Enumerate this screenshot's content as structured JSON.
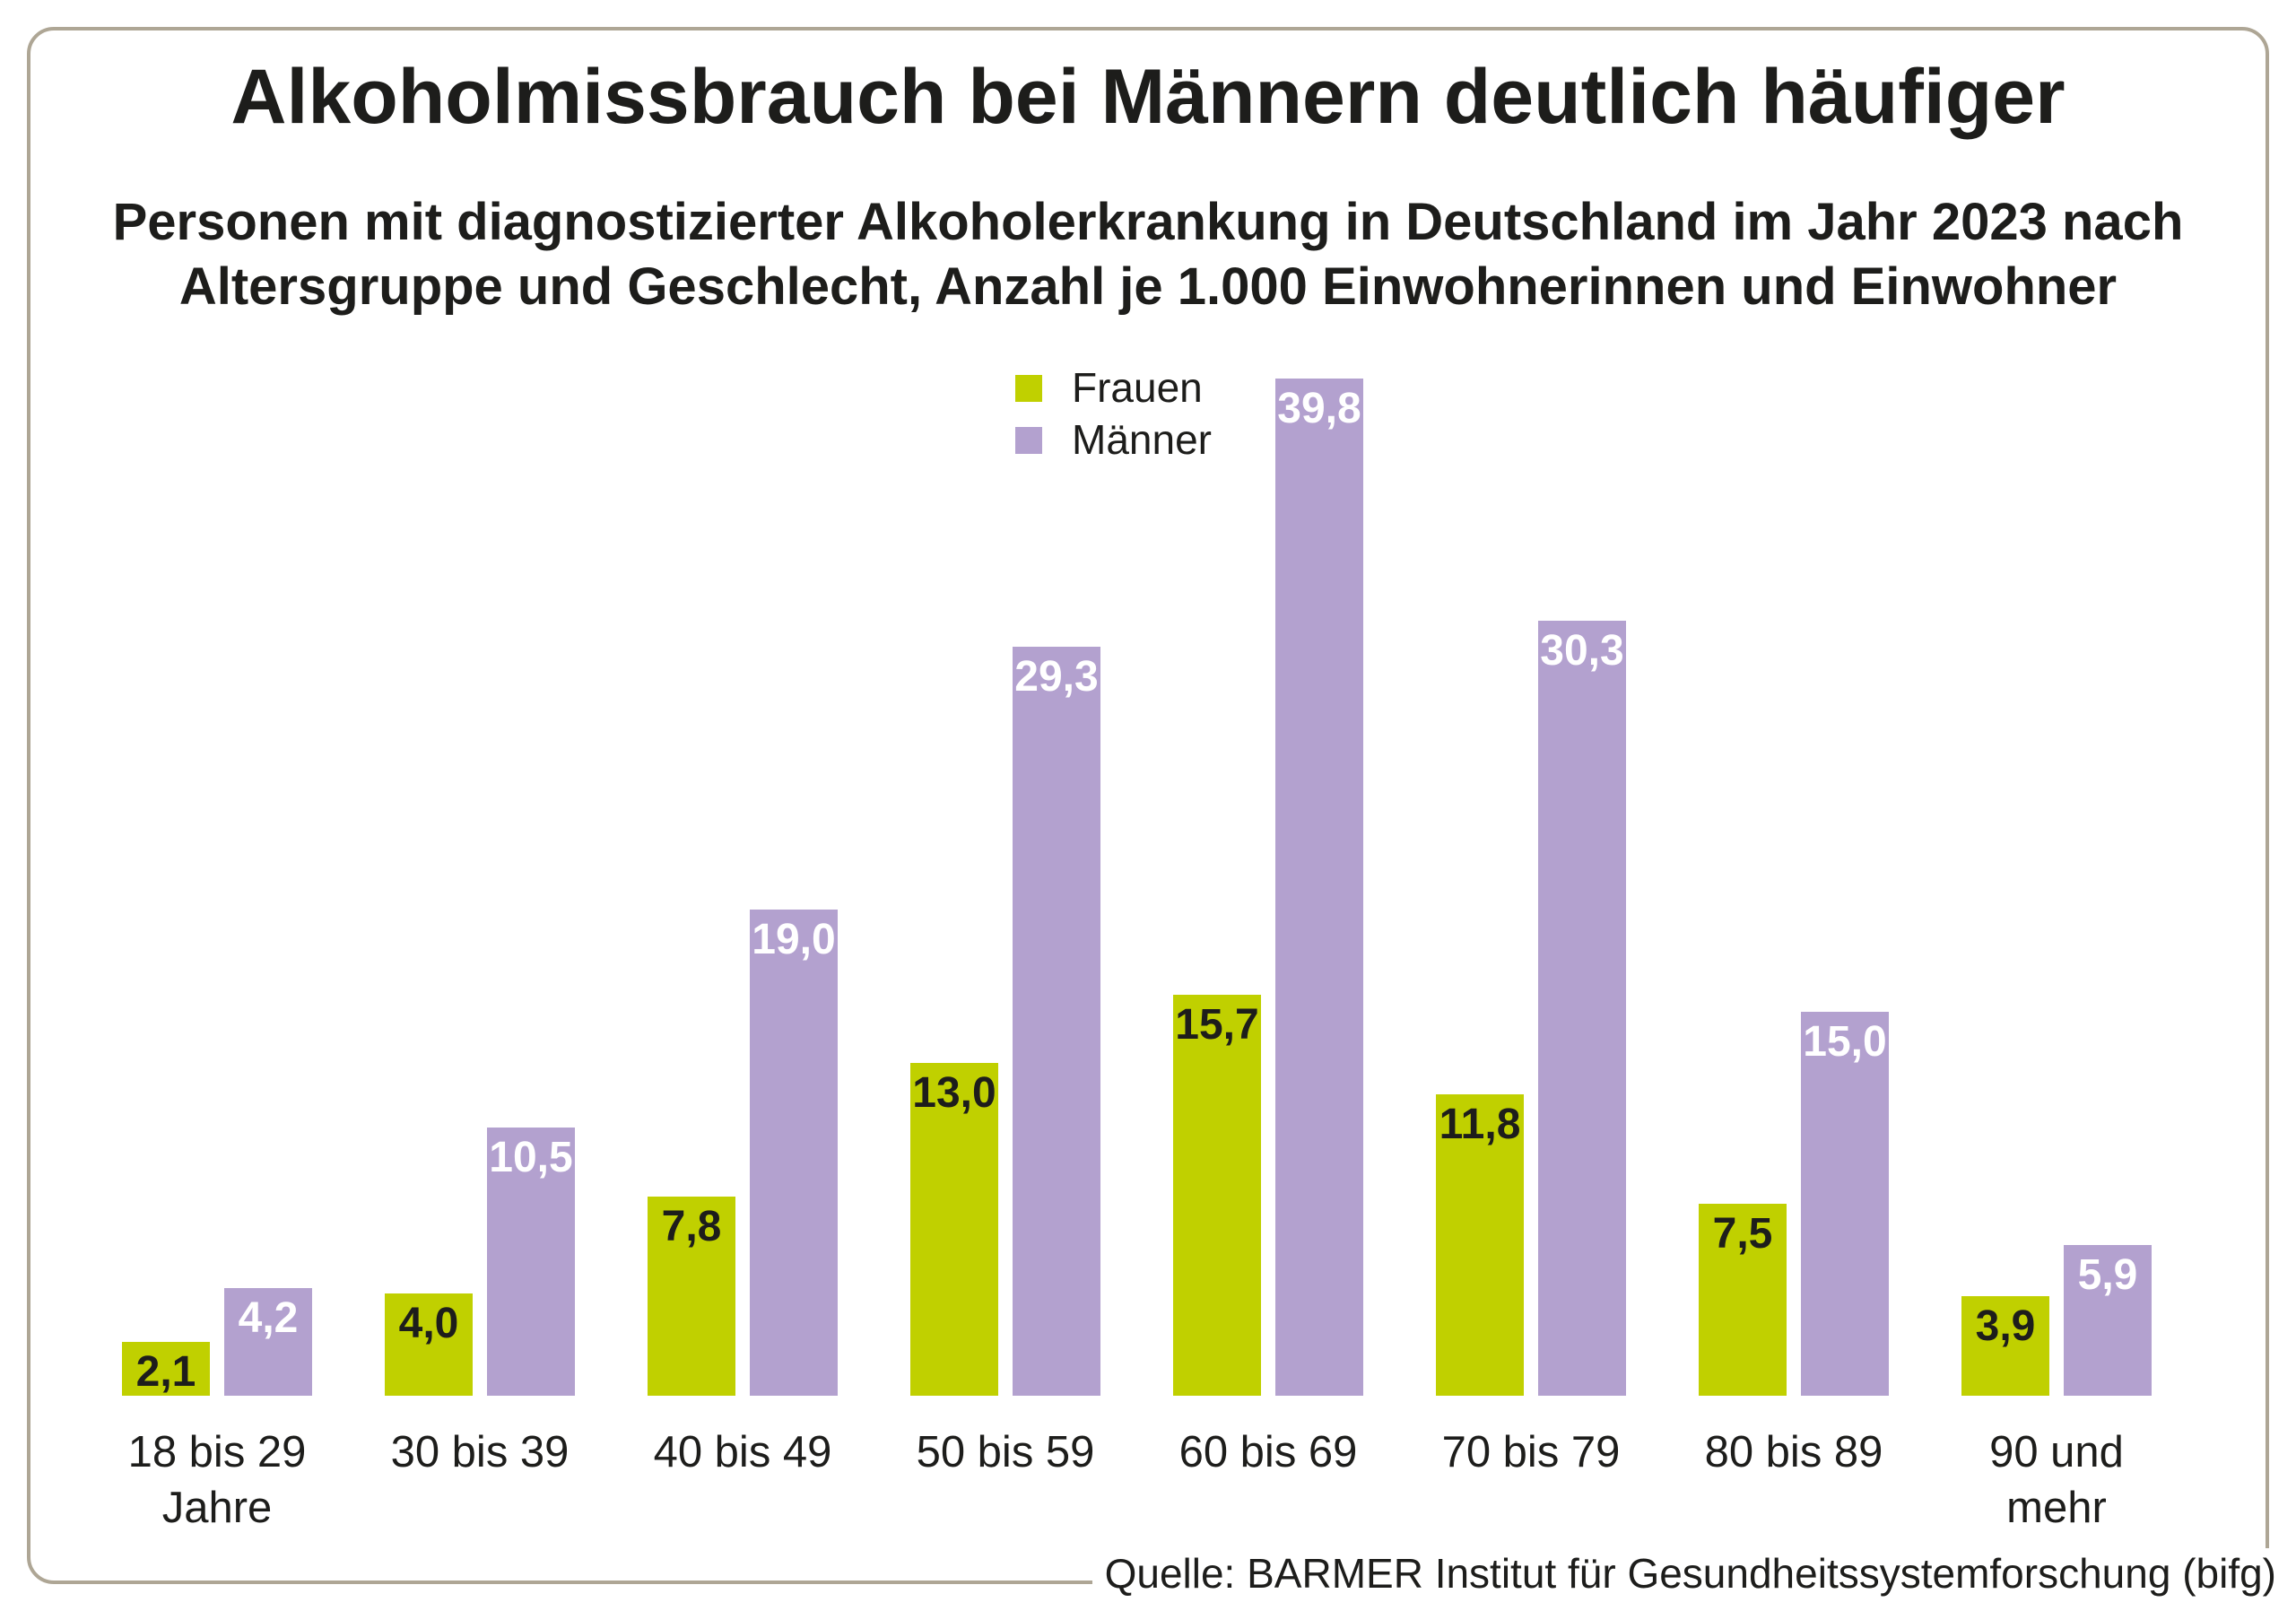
{
  "chart_data": {
    "type": "bar",
    "title": "Alkoholmissbrauch bei Männern deutlich häufiger",
    "subtitle_lines": [
      "Personen mit diagnostizierter Alkoholerkrankung in Deutschland im Jahr 2023 nach",
      "Altersgruppe und Geschlecht, Anzahl je 1.000 Einwohnerinnen und Einwohner"
    ],
    "categories": [
      "18 bis 29\nJahre",
      "30 bis 39",
      "40 bis 49",
      "50 bis 59",
      "60 bis 69",
      "70 bis 79",
      "80 bis 89",
      "90 und\nmehr"
    ],
    "series": [
      {
        "name": "Frauen",
        "color": "#c0d000",
        "value_label_color": "#1d1d1b",
        "values": [
          2.1,
          4.0,
          7.8,
          13.0,
          15.7,
          11.8,
          7.5,
          3.9
        ],
        "value_labels": [
          "2,1",
          "4,0",
          "7,8",
          "13,0",
          "15,7",
          "11,8",
          "7,5",
          "3,9"
        ]
      },
      {
        "name": "Männer",
        "color": "#b3a1cf",
        "value_label_color": "#ffffff",
        "values": [
          4.2,
          10.5,
          19.0,
          29.3,
          39.8,
          30.3,
          15.0,
          5.9
        ],
        "value_labels": [
          "4,2",
          "10,5",
          "19,0",
          "29,3",
          "39,8",
          "30,3",
          "15,0",
          "5,9"
        ]
      }
    ],
    "ylim": [
      0,
      40
    ],
    "grid": false,
    "axis_lines": false,
    "legend_position": "top-center",
    "frame_border_color": "#aea695",
    "source": "Quelle: BARMER Institut für Gesundheitssystemforschung (bifg)"
  }
}
